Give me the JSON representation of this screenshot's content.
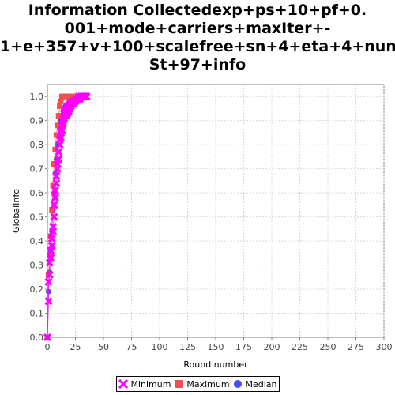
{
  "chart_data": {
    "type": "line",
    "title_lines": [
      "Information Collectedexp+ps+10+pf+0.",
      "001+mode+carriers+maxIter+-",
      "1+e+357+v+100+scalefree+sn+4+eta+4+num",
      "St+97+info"
    ],
    "xlabel": "Round number",
    "ylabel": "GlobalInfo",
    "xlim": [
      0,
      300
    ],
    "ylim": [
      0,
      1.05
    ],
    "x_ticks": [
      0,
      25,
      50,
      75,
      100,
      125,
      150,
      175,
      200,
      225,
      250,
      275,
      300
    ],
    "y_ticks": [
      0.0,
      0.1,
      0.2,
      0.3,
      0.4,
      0.5,
      0.6,
      0.7,
      0.8,
      0.9,
      1.0
    ],
    "y_tick_labels": [
      "0,0",
      "0,1",
      "0,2",
      "0,3",
      "0,4",
      "0,5",
      "0,6",
      "0,7",
      "0,8",
      "0,9",
      "1,0"
    ],
    "x_tick_labels": [
      "0",
      "25",
      "50",
      "75",
      "100",
      "125",
      "150",
      "175",
      "200",
      "225",
      "250",
      "275",
      "300"
    ],
    "grid": true,
    "legend_position": "bottom",
    "series": [
      {
        "name": "Minimum",
        "color": "#ff00ff",
        "marker": "x",
        "x": [
          0,
          1,
          1,
          2,
          2,
          3,
          3,
          4,
          4,
          5,
          5,
          6,
          6,
          7,
          7,
          8,
          8,
          9,
          9,
          10,
          10,
          11,
          11,
          12,
          12,
          13,
          13,
          14,
          14,
          15,
          15,
          16,
          16,
          17,
          17,
          18,
          18,
          19,
          19,
          20,
          20,
          21,
          21,
          22,
          22,
          23,
          23,
          24,
          25,
          26,
          27,
          28,
          29,
          30,
          31,
          32,
          33,
          34,
          35
        ],
        "y": [
          0.0,
          0.15,
          0.23,
          0.26,
          0.31,
          0.33,
          0.36,
          0.38,
          0.41,
          0.44,
          0.46,
          0.5,
          0.55,
          0.58,
          0.61,
          0.64,
          0.67,
          0.7,
          0.72,
          0.74,
          0.77,
          0.8,
          0.82,
          0.83,
          0.85,
          0.86,
          0.88,
          0.89,
          0.9,
          0.91,
          0.92,
          0.93,
          0.94,
          0.92,
          0.95,
          0.93,
          0.96,
          0.94,
          0.96,
          0.95,
          0.97,
          0.96,
          0.97,
          0.98,
          0.97,
          0.98,
          0.97,
          0.98,
          0.98,
          0.99,
          0.99,
          1.0,
          0.99,
          1.0,
          1.0,
          1.0,
          1.0,
          1.0,
          1.0
        ]
      },
      {
        "name": "Maximum",
        "color": "#f0504f",
        "marker": "square",
        "x": [
          0,
          1,
          2,
          3,
          4,
          5,
          6,
          7,
          8,
          9,
          10,
          11,
          12,
          13,
          14,
          15,
          16,
          17,
          18,
          19,
          20,
          22,
          24,
          26,
          28,
          30
        ],
        "y": [
          0.0,
          0.26,
          0.34,
          0.42,
          0.53,
          0.63,
          0.72,
          0.78,
          0.84,
          0.88,
          0.92,
          0.96,
          0.98,
          1.0,
          1.0,
          1.0,
          1.0,
          1.0,
          1.0,
          1.0,
          1.0,
          1.0,
          1.0,
          1.0,
          1.0,
          1.0
        ]
      },
      {
        "name": "Median",
        "color": "#4a4aff",
        "marker": "circle",
        "x": [
          0,
          1,
          2,
          3,
          4,
          5,
          6,
          7,
          8,
          9,
          10,
          11,
          12,
          13,
          14,
          15,
          16,
          18,
          20,
          22,
          25,
          28
        ],
        "y": [
          0.0,
          0.19,
          0.27,
          0.36,
          0.44,
          0.53,
          0.6,
          0.68,
          0.74,
          0.8,
          0.84,
          0.87,
          0.9,
          0.92,
          0.94,
          0.95,
          0.96,
          0.97,
          0.98,
          0.99,
          1.0,
          1.0
        ]
      }
    ]
  }
}
